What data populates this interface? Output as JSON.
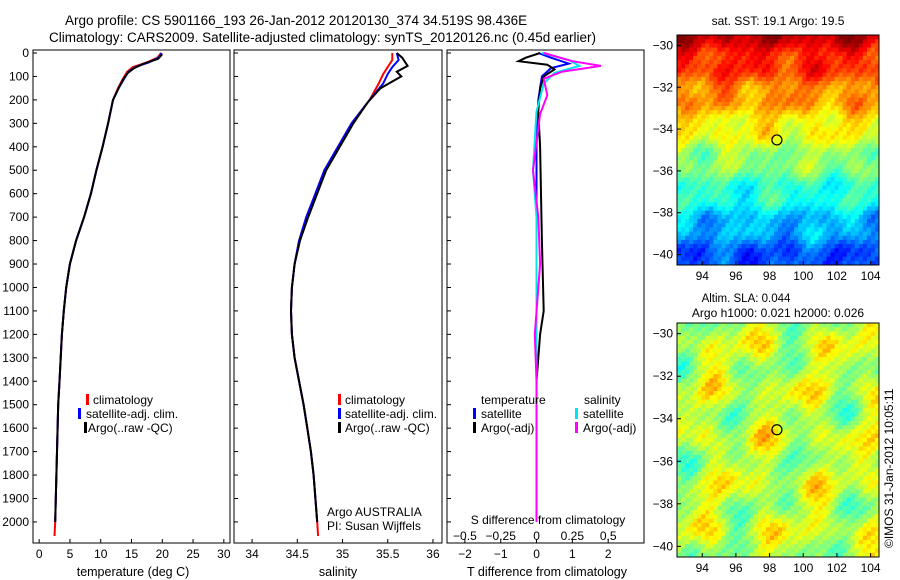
{
  "header": {
    "line1": "Argo profile: CS 5901166_193 26-Jan-2012 20120130_374 34.519S 98.436E",
    "line2": "Climatology: CARS2009. Satellite-adjusted climatology: synTS_20120126.nc (0.45d earlier)"
  },
  "side_label": "©IMOS 31-Jan-2012 10:05:11",
  "colors": {
    "climatology": "#ff0000",
    "satellite": "#0000ff",
    "argo": "#000000",
    "salinity_satellite": "#00e5ee",
    "salinity_argo": "#ff00ff"
  },
  "chart_data": [
    {
      "type": "line",
      "panel": "temperature",
      "xlabel": "temperature (deg C)",
      "xlim": [
        -1,
        31
      ],
      "xticks": [
        0,
        5,
        10,
        15,
        20,
        25,
        30
      ],
      "ylim": [
        2080,
        0
      ],
      "yticks": [
        0,
        100,
        200,
        300,
        400,
        500,
        600,
        700,
        800,
        900,
        1000,
        1100,
        1200,
        1300,
        1400,
        1500,
        1600,
        1700,
        1800,
        1900,
        2000
      ],
      "legend": [
        "climatology",
        "satellite-adj. clim.",
        "Argo(..raw -QC)"
      ],
      "series": [
        {
          "name": "climatology",
          "color": "#ff0000",
          "points": [
            [
              19.8,
              0
            ],
            [
              19.2,
              20
            ],
            [
              17.5,
              40
            ],
            [
              15.2,
              60
            ],
            [
              14.3,
              80
            ],
            [
              13.6,
              110
            ],
            [
              12.8,
              150
            ],
            [
              12.0,
              200
            ],
            [
              11.2,
              300
            ],
            [
              10.3,
              400
            ],
            [
              9.3,
              500
            ],
            [
              8.4,
              600
            ],
            [
              7.3,
              700
            ],
            [
              6.0,
              800
            ],
            [
              5.0,
              900
            ],
            [
              4.4,
              1000
            ],
            [
              4.0,
              1100
            ],
            [
              3.7,
              1200
            ],
            [
              3.5,
              1300
            ],
            [
              3.3,
              1400
            ],
            [
              3.1,
              1500
            ],
            [
              3.0,
              1600
            ],
            [
              2.8,
              1800
            ],
            [
              2.6,
              2000
            ],
            [
              2.5,
              2060
            ]
          ]
        },
        {
          "name": "satellite-adj. clim.",
          "color": "#0000ff",
          "points": [
            [
              19.9,
              0
            ],
            [
              19.4,
              20
            ],
            [
              17.8,
              40
            ],
            [
              15.6,
              60
            ],
            [
              14.5,
              80
            ],
            [
              13.8,
              110
            ],
            [
              12.9,
              150
            ],
            [
              12.0,
              200
            ],
            [
              11.2,
              300
            ],
            [
              10.3,
              400
            ],
            [
              9.3,
              500
            ],
            [
              8.4,
              600
            ],
            [
              7.3,
              700
            ],
            [
              6.0,
              800
            ],
            [
              5.0,
              900
            ],
            [
              4.4,
              1000
            ],
            [
              4.0,
              1100
            ],
            [
              3.7,
              1200
            ],
            [
              3.5,
              1300
            ],
            [
              3.3,
              1400
            ],
            [
              3.1,
              1500
            ],
            [
              3.0,
              1600
            ],
            [
              2.8,
              1800
            ],
            [
              2.6,
              2000
            ]
          ]
        },
        {
          "name": "Argo(..raw -QC)",
          "color": "#000000",
          "points": [
            [
              20.0,
              5
            ],
            [
              19.3,
              25
            ],
            [
              17.0,
              45
            ],
            [
              15.4,
              65
            ],
            [
              14.4,
              85
            ],
            [
              13.7,
              110
            ],
            [
              12.9,
              150
            ],
            [
              12.0,
              200
            ],
            [
              11.2,
              300
            ],
            [
              10.3,
              400
            ],
            [
              9.3,
              500
            ],
            [
              8.4,
              600
            ],
            [
              7.3,
              700
            ],
            [
              6.0,
              800
            ],
            [
              5.0,
              900
            ],
            [
              4.4,
              1000
            ],
            [
              4.0,
              1100
            ],
            [
              3.7,
              1200
            ],
            [
              3.5,
              1300
            ],
            [
              3.3,
              1400
            ],
            [
              3.1,
              1500
            ],
            [
              3.0,
              1600
            ],
            [
              2.8,
              1800
            ],
            [
              2.6,
              2000
            ]
          ]
        }
      ]
    },
    {
      "type": "line",
      "panel": "salinity",
      "xlabel": "salinity",
      "xlim": [
        33.8,
        36.1
      ],
      "xticks": [
        34,
        34.5,
        35,
        35.5,
        36
      ],
      "ylim": [
        2080,
        0
      ],
      "legend": [
        "climatology",
        "satellite-adj. clim.",
        "Argo(..raw -QC)"
      ],
      "annotation": [
        "Argo AUSTRALIA",
        "PI: Susan Wijffels"
      ],
      "series": [
        {
          "name": "climatology",
          "color": "#ff0000",
          "points": [
            [
              35.55,
              0
            ],
            [
              35.55,
              30
            ],
            [
              35.5,
              60
            ],
            [
              35.45,
              90
            ],
            [
              35.4,
              130
            ],
            [
              35.3,
              200
            ],
            [
              35.1,
              300
            ],
            [
              34.95,
              400
            ],
            [
              34.8,
              500
            ],
            [
              34.7,
              600
            ],
            [
              34.6,
              700
            ],
            [
              34.52,
              800
            ],
            [
              34.47,
              900
            ],
            [
              34.44,
              1000
            ],
            [
              34.43,
              1100
            ],
            [
              34.44,
              1200
            ],
            [
              34.47,
              1300
            ],
            [
              34.52,
              1400
            ],
            [
              34.57,
              1500
            ],
            [
              34.61,
              1600
            ],
            [
              34.65,
              1700
            ],
            [
              34.68,
              1800
            ],
            [
              34.7,
              1900
            ],
            [
              34.72,
              2000
            ],
            [
              34.73,
              2060
            ]
          ]
        },
        {
          "name": "satellite-adj. clim.",
          "color": "#0000ff",
          "points": [
            [
              35.6,
              0
            ],
            [
              35.62,
              30
            ],
            [
              35.55,
              60
            ],
            [
              35.5,
              90
            ],
            [
              35.45,
              130
            ],
            [
              35.3,
              200
            ],
            [
              35.1,
              300
            ],
            [
              34.95,
              400
            ],
            [
              34.8,
              500
            ],
            [
              34.7,
              600
            ],
            [
              34.6,
              700
            ],
            [
              34.52,
              800
            ],
            [
              34.47,
              900
            ],
            [
              34.44,
              1000
            ],
            [
              34.43,
              1100
            ],
            [
              34.44,
              1200
            ],
            [
              34.47,
              1300
            ],
            [
              34.52,
              1400
            ],
            [
              34.57,
              1500
            ],
            [
              34.61,
              1600
            ],
            [
              34.65,
              1700
            ],
            [
              34.68,
              1800
            ],
            [
              34.7,
              1900
            ],
            [
              34.72,
              2000
            ]
          ]
        },
        {
          "name": "Argo(..raw -QC)",
          "color": "#000000",
          "points": [
            [
              35.6,
              0
            ],
            [
              35.66,
              20
            ],
            [
              35.72,
              55
            ],
            [
              35.6,
              80
            ],
            [
              35.65,
              100
            ],
            [
              35.42,
              150
            ],
            [
              35.28,
              210
            ],
            [
              35.12,
              300
            ],
            [
              34.97,
              400
            ],
            [
              34.82,
              500
            ],
            [
              34.72,
              600
            ],
            [
              34.62,
              700
            ],
            [
              34.53,
              800
            ],
            [
              34.47,
              900
            ],
            [
              34.44,
              1000
            ],
            [
              34.43,
              1100
            ],
            [
              34.44,
              1200
            ],
            [
              34.47,
              1300
            ],
            [
              34.52,
              1400
            ],
            [
              34.57,
              1500
            ],
            [
              34.61,
              1600
            ],
            [
              34.65,
              1700
            ],
            [
              34.68,
              1800
            ],
            [
              34.7,
              1900
            ],
            [
              34.72,
              2000
            ]
          ]
        }
      ]
    },
    {
      "type": "line",
      "panel": "difference",
      "xlabel": "T difference from climatology",
      "xlabel_top": "S difference from climatology",
      "xlim": [
        -2.5,
        3
      ],
      "xticks": [
        -2,
        -1,
        0,
        1,
        2
      ],
      "xticks_s": [
        "-0.5",
        "-0.25",
        "0",
        "0.25",
        "0.5"
      ],
      "ylim": [
        2080,
        0
      ],
      "legend_titles": [
        "temperature",
        "salinity"
      ],
      "legend": [
        "satellite",
        "Argo(-adj)",
        "satellite",
        "Argo(-adj)"
      ],
      "series": [
        {
          "name": "satellite",
          "color": "#0000ff",
          "points": [
            [
              0.05,
              0
            ],
            [
              0.4,
              20
            ],
            [
              0.9,
              45
            ],
            [
              0.4,
              65
            ],
            [
              0.15,
              100
            ],
            [
              0.05,
              200
            ],
            [
              0.0,
              400
            ],
            [
              0.0,
              2000
            ]
          ]
        },
        {
          "name": "Argo(-adj)",
          "color": "#000000",
          "points": [
            [
              0.1,
              0
            ],
            [
              -0.3,
              20
            ],
            [
              -0.5,
              35
            ],
            [
              0.3,
              50
            ],
            [
              0.5,
              70
            ],
            [
              0.2,
              100
            ],
            [
              0.1,
              150
            ],
            [
              0.05,
              250
            ],
            [
              0.1,
              400
            ],
            [
              0.15,
              800
            ],
            [
              0.2,
              1100
            ],
            [
              0.1,
              1200
            ],
            [
              0.0,
              1400
            ],
            [
              0.0,
              2000
            ]
          ]
        },
        {
          "name": "satellite",
          "color": "#00e5ee",
          "points": [
            [
              0.15,
              0
            ],
            [
              0.9,
              30
            ],
            [
              1.2,
              55
            ],
            [
              0.5,
              85
            ],
            [
              0.2,
              130
            ],
            [
              0.0,
              250
            ],
            [
              -0.1,
              500
            ],
            [
              0.0,
              700
            ],
            [
              0.0,
              2000
            ]
          ]
        },
        {
          "name": "Argo(-adj)",
          "color": "#ff00ff",
          "points": [
            [
              0.2,
              0
            ],
            [
              1.0,
              35
            ],
            [
              1.8,
              55
            ],
            [
              0.7,
              80
            ],
            [
              0.2,
              110
            ],
            [
              0.3,
              180
            ],
            [
              0.1,
              260
            ],
            [
              -0.1,
              500
            ],
            [
              0.05,
              700
            ],
            [
              0.1,
              900
            ],
            [
              -0.05,
              1200
            ],
            [
              0.0,
              1400
            ],
            [
              0.0,
              2000
            ]
          ]
        }
      ]
    },
    {
      "type": "heatmap",
      "panel": "sst",
      "title": "sat. SST: 19.1 Argo: 19.5",
      "xlim": [
        92.5,
        104.5
      ],
      "ylim": [
        -40.5,
        -29.5
      ],
      "xticks": [
        94,
        96,
        98,
        100,
        102,
        104
      ],
      "yticks": [
        -30,
        -32,
        -34,
        -36,
        -38,
        -40
      ],
      "marker": [
        98.436,
        -34.519
      ]
    },
    {
      "type": "heatmap",
      "panel": "sla",
      "title": "Altim. SLA: 0.044",
      "subtitle": "Argo h1000: 0.021 h2000: 0.026",
      "xlim": [
        92.5,
        104.5
      ],
      "ylim": [
        -40.5,
        -29.5
      ],
      "xticks": [
        94,
        96,
        98,
        100,
        102,
        104
      ],
      "yticks": [
        -30,
        -32,
        -34,
        -36,
        -38,
        -40
      ],
      "marker": [
        98.436,
        -34.519
      ]
    }
  ]
}
